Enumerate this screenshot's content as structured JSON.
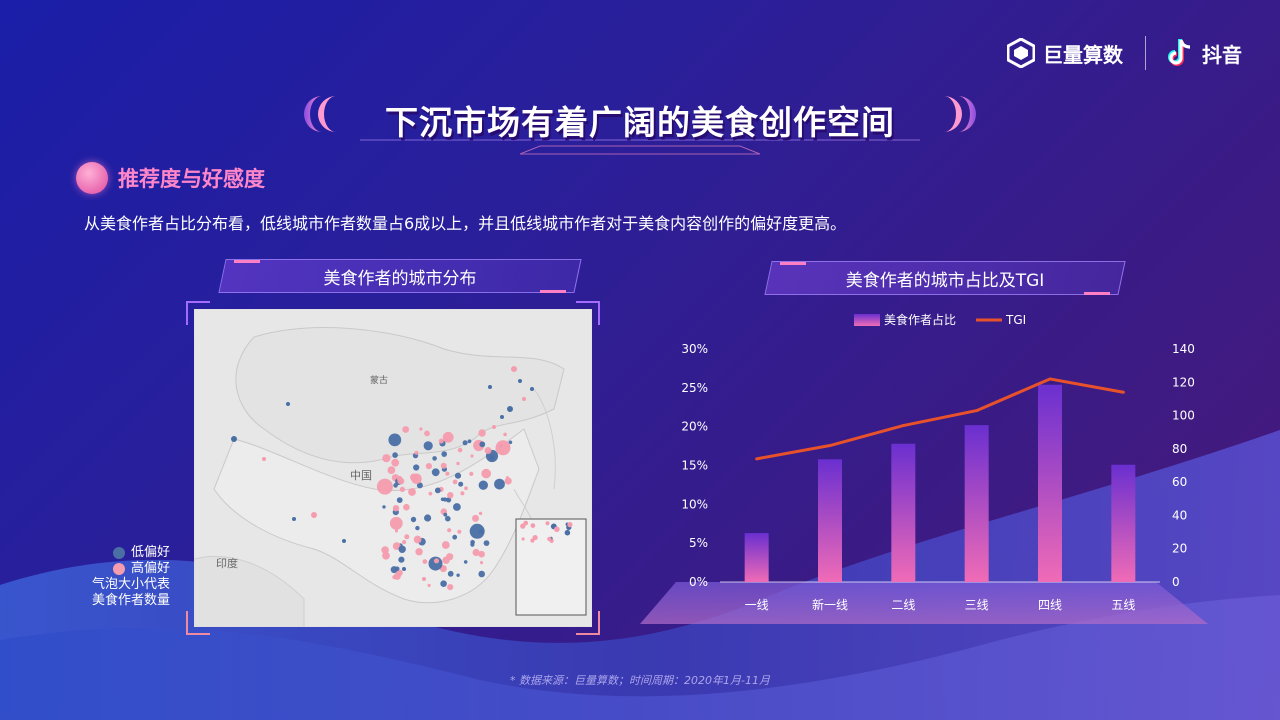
{
  "brand": {
    "left_name": "巨量算数",
    "right_name": "抖音"
  },
  "page_title": "下沉市场有着广阔的美食创作空间",
  "section": {
    "heading": "推荐度与好感度",
    "description": "从美食作者占比分布看，低线城市作者数量占6成以上，并且低线城市作者对于美食内容创作的偏好度更高。"
  },
  "map_panel": {
    "title": "美食作者的城市分布",
    "labels": {
      "mongolia": "蒙古",
      "china": "中国",
      "india": "印度"
    },
    "legend": {
      "low": "低偏好",
      "high": "高偏好",
      "size_note_1": "气泡大小代表",
      "size_note_2": "美食作者数量"
    },
    "colors": {
      "low": "#4a6fa5",
      "high": "#f59cae"
    }
  },
  "chart_panel": {
    "title": "美食作者的城市占比及TGI"
  },
  "chart_data": {
    "type": "bar",
    "categories": [
      "一线",
      "新一线",
      "二线",
      "三线",
      "四线",
      "五线"
    ],
    "series": [
      {
        "name": "美食作者占比",
        "type": "bar",
        "axis": "left",
        "values": [
          6.3,
          15.8,
          17.8,
          20.2,
          25.4,
          15.1
        ],
        "color": "#e85fb4"
      },
      {
        "name": "TGI",
        "type": "line",
        "axis": "right",
        "values": [
          74,
          82,
          94,
          103,
          122,
          114
        ],
        "color": "#e8522b"
      }
    ],
    "y_left": {
      "min": 0,
      "max": 30,
      "ticks": [
        "0%",
        "5%",
        "10%",
        "15%",
        "20%",
        "25%",
        "30%"
      ]
    },
    "y_right": {
      "min": 0,
      "max": 140,
      "ticks": [
        "0",
        "20",
        "40",
        "60",
        "80",
        "100",
        "120",
        "140"
      ]
    },
    "legend_position": "top-center",
    "grid": false
  },
  "footnote": "* 数据来源：巨量算数；时间周期：2020年1月-11月"
}
